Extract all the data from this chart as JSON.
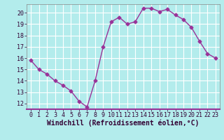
{
  "x": [
    0,
    1,
    2,
    3,
    4,
    5,
    6,
    7,
    8,
    9,
    10,
    11,
    12,
    13,
    14,
    15,
    16,
    17,
    18,
    19,
    20,
    21,
    22,
    23
  ],
  "y": [
    15.8,
    15.0,
    14.6,
    14.0,
    13.6,
    13.1,
    12.2,
    11.7,
    14.0,
    17.0,
    19.2,
    19.6,
    19.0,
    19.2,
    20.4,
    20.4,
    20.1,
    20.3,
    19.8,
    19.4,
    18.7,
    17.5,
    16.4,
    16.0
  ],
  "line_color": "#993399",
  "marker": "D",
  "markersize": 2.5,
  "linewidth": 1.0,
  "bg_color": "#b3ecec",
  "grid_color": "#ffffff",
  "xlabel": "Windchill (Refroidissement éolien,°C)",
  "xlabel_fontsize": 7,
  "tick_fontsize": 6,
  "xlim": [
    -0.5,
    23.5
  ],
  "ylim": [
    11.5,
    20.75
  ],
  "yticks": [
    12,
    13,
    14,
    15,
    16,
    17,
    18,
    19,
    20
  ],
  "xticks": [
    0,
    1,
    2,
    3,
    4,
    5,
    6,
    7,
    8,
    9,
    10,
    11,
    12,
    13,
    14,
    15,
    16,
    17,
    18,
    19,
    20,
    21,
    22,
    23
  ]
}
